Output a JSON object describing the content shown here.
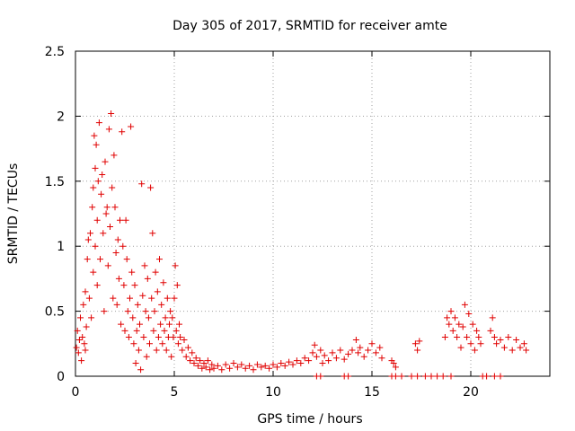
{
  "chart_data": {
    "type": "scatter",
    "title": "Day 305 of 2017, SRMTID for receiver amte",
    "xlabel": "GPS time / hours",
    "ylabel": "SRMTID / TECUs",
    "xlim": [
      0,
      24
    ],
    "ylim": [
      0,
      2.5
    ],
    "x_ticks": [
      0,
      5,
      10,
      15,
      20
    ],
    "x_tick_labels": [
      "0",
      "5",
      "10",
      "15",
      "20"
    ],
    "y_ticks": [
      0,
      0.5,
      1,
      1.5,
      2,
      2.5
    ],
    "y_tick_labels": [
      "0",
      "0.5",
      "1",
      "1.5",
      "2",
      "2.5"
    ],
    "grid": true,
    "marker": "+",
    "color": "#e00000",
    "series": [
      {
        "name": "SRMTID",
        "points": [
          [
            0.05,
            0.22
          ],
          [
            0.1,
            0.35
          ],
          [
            0.15,
            0.18
          ],
          [
            0.2,
            0.28
          ],
          [
            0.25,
            0.45
          ],
          [
            0.3,
            0.12
          ],
          [
            0.35,
            0.3
          ],
          [
            0.4,
            0.55
          ],
          [
            0.45,
            0.25
          ],
          [
            0.5,
            0.2
          ],
          [
            0.5,
            0.65
          ],
          [
            0.55,
            0.38
          ],
          [
            0.6,
            0.9
          ],
          [
            0.65,
            1.05
          ],
          [
            0.7,
            0.6
          ],
          [
            0.75,
            1.1
          ],
          [
            0.8,
            0.45
          ],
          [
            0.85,
            1.3
          ],
          [
            0.9,
            1.45
          ],
          [
            0.9,
            0.8
          ],
          [
            0.95,
            1.85
          ],
          [
            1.0,
            1.6
          ],
          [
            1.0,
            1.0
          ],
          [
            1.05,
            1.78
          ],
          [
            1.1,
            1.2
          ],
          [
            1.1,
            0.7
          ],
          [
            1.15,
            1.5
          ],
          [
            1.2,
            1.95
          ],
          [
            1.25,
            0.9
          ],
          [
            1.3,
            1.4
          ],
          [
            1.35,
            1.55
          ],
          [
            1.4,
            1.1
          ],
          [
            1.45,
            0.5
          ],
          [
            1.5,
            1.65
          ],
          [
            1.55,
            1.25
          ],
          [
            1.6,
            1.3
          ],
          [
            1.65,
            0.85
          ],
          [
            1.7,
            1.9
          ],
          [
            1.75,
            1.15
          ],
          [
            1.8,
            2.02
          ],
          [
            1.85,
            1.45
          ],
          [
            1.9,
            0.6
          ],
          [
            1.95,
            1.7
          ],
          [
            2.0,
            1.3
          ],
          [
            2.05,
            0.95
          ],
          [
            2.1,
            0.55
          ],
          [
            2.15,
            1.05
          ],
          [
            2.2,
            0.75
          ],
          [
            2.25,
            1.2
          ],
          [
            2.3,
            0.4
          ],
          [
            2.35,
            1.88
          ],
          [
            2.4,
            1.0
          ],
          [
            2.45,
            0.7
          ],
          [
            2.5,
            0.35
          ],
          [
            2.55,
            1.2
          ],
          [
            2.6,
            0.9
          ],
          [
            2.65,
            0.5
          ],
          [
            2.7,
            0.3
          ],
          [
            2.75,
            0.6
          ],
          [
            2.8,
            1.92
          ],
          [
            2.85,
            0.8
          ],
          [
            2.9,
            0.45
          ],
          [
            2.95,
            0.25
          ],
          [
            3.0,
            0.7
          ],
          [
            3.05,
            0.1
          ],
          [
            3.1,
            0.35
          ],
          [
            3.15,
            0.55
          ],
          [
            3.2,
            0.2
          ],
          [
            3.25,
            0.4
          ],
          [
            3.3,
            0.05
          ],
          [
            3.35,
            1.48
          ],
          [
            3.4,
            0.62
          ],
          [
            3.45,
            0.3
          ],
          [
            3.5,
            0.85
          ],
          [
            3.55,
            0.5
          ],
          [
            3.6,
            0.15
          ],
          [
            3.65,
            0.75
          ],
          [
            3.7,
            0.45
          ],
          [
            3.75,
            0.25
          ],
          [
            3.8,
            1.45
          ],
          [
            3.85,
            0.6
          ],
          [
            3.9,
            1.1
          ],
          [
            3.95,
            0.35
          ],
          [
            4.0,
            0.5
          ],
          [
            4.05,
            0.8
          ],
          [
            4.1,
            0.2
          ],
          [
            4.15,
            0.65
          ],
          [
            4.2,
            0.3
          ],
          [
            4.25,
            0.9
          ],
          [
            4.3,
            0.4
          ],
          [
            4.35,
            0.55
          ],
          [
            4.4,
            0.25
          ],
          [
            4.45,
            0.72
          ],
          [
            4.5,
            0.35
          ],
          [
            4.55,
            0.45
          ],
          [
            4.6,
            0.2
          ],
          [
            4.65,
            0.6
          ],
          [
            4.7,
            0.3
          ],
          [
            4.75,
            0.4
          ],
          [
            4.8,
            0.5
          ],
          [
            4.85,
            0.15
          ],
          [
            4.9,
            0.45
          ],
          [
            4.95,
            0.3
          ],
          [
            5.0,
            0.6
          ],
          [
            5.05,
            0.85
          ],
          [
            5.1,
            0.35
          ],
          [
            5.15,
            0.7
          ],
          [
            5.2,
            0.25
          ],
          [
            5.25,
            0.4
          ],
          [
            5.3,
            0.3
          ],
          [
            5.4,
            0.2
          ],
          [
            5.5,
            0.28
          ],
          [
            5.6,
            0.15
          ],
          [
            5.7,
            0.22
          ],
          [
            5.8,
            0.12
          ],
          [
            5.9,
            0.18
          ],
          [
            6.0,
            0.1
          ],
          [
            6.1,
            0.14
          ],
          [
            6.2,
            0.08
          ],
          [
            6.3,
            0.12
          ],
          [
            6.4,
            0.06
          ],
          [
            6.5,
            0.1
          ],
          [
            6.6,
            0.07
          ],
          [
            6.7,
            0.12
          ],
          [
            6.8,
            0.05
          ],
          [
            6.9,
            0.09
          ],
          [
            7.0,
            0.06
          ],
          [
            7.2,
            0.08
          ],
          [
            7.4,
            0.05
          ],
          [
            7.6,
            0.09
          ],
          [
            7.8,
            0.06
          ],
          [
            8.0,
            0.1
          ],
          [
            8.2,
            0.07
          ],
          [
            8.4,
            0.09
          ],
          [
            8.6,
            0.06
          ],
          [
            8.8,
            0.08
          ],
          [
            9.0,
            0.05
          ],
          [
            9.2,
            0.09
          ],
          [
            9.4,
            0.07
          ],
          [
            9.6,
            0.08
          ],
          [
            9.8,
            0.06
          ],
          [
            10.0,
            0.09
          ],
          [
            10.2,
            0.07
          ],
          [
            10.4,
            0.1
          ],
          [
            10.6,
            0.08
          ],
          [
            10.8,
            0.11
          ],
          [
            11.0,
            0.09
          ],
          [
            11.2,
            0.12
          ],
          [
            11.4,
            0.1
          ],
          [
            11.6,
            0.14
          ],
          [
            11.8,
            0.12
          ],
          [
            12.0,
            0.18
          ],
          [
            12.1,
            0.24
          ],
          [
            12.2,
            0.15
          ],
          [
            12.4,
            0.2
          ],
          [
            12.5,
            0.1
          ],
          [
            12.6,
            0.16
          ],
          [
            12.8,
            0.12
          ],
          [
            13.0,
            0.18
          ],
          [
            13.2,
            0.14
          ],
          [
            13.4,
            0.2
          ],
          [
            13.6,
            0.13
          ],
          [
            13.8,
            0.17
          ],
          [
            14.0,
            0.2
          ],
          [
            14.2,
            0.28
          ],
          [
            14.3,
            0.18
          ],
          [
            14.4,
            0.22
          ],
          [
            14.6,
            0.15
          ],
          [
            14.8,
            0.2
          ],
          [
            15.0,
            0.25
          ],
          [
            15.2,
            0.18
          ],
          [
            15.4,
            0.22
          ],
          [
            15.5,
            0.14
          ],
          [
            16.0,
            0.12
          ],
          [
            16.1,
            0.1
          ],
          [
            16.2,
            0.07
          ],
          [
            17.2,
            0.25
          ],
          [
            17.3,
            0.2
          ],
          [
            17.4,
            0.27
          ],
          [
            18.7,
            0.3
          ],
          [
            18.8,
            0.45
          ],
          [
            18.9,
            0.4
          ],
          [
            19.0,
            0.5
          ],
          [
            19.1,
            0.35
          ],
          [
            19.2,
            0.45
          ],
          [
            19.3,
            0.3
          ],
          [
            19.4,
            0.4
          ],
          [
            19.5,
            0.22
          ],
          [
            19.6,
            0.38
          ],
          [
            19.7,
            0.55
          ],
          [
            19.8,
            0.3
          ],
          [
            19.9,
            0.48
          ],
          [
            20.0,
            0.25
          ],
          [
            20.1,
            0.4
          ],
          [
            20.2,
            0.2
          ],
          [
            20.3,
            0.35
          ],
          [
            20.4,
            0.3
          ],
          [
            20.5,
            0.25
          ],
          [
            21.0,
            0.35
          ],
          [
            21.1,
            0.45
          ],
          [
            21.2,
            0.3
          ],
          [
            21.3,
            0.25
          ],
          [
            21.5,
            0.28
          ],
          [
            21.7,
            0.22
          ],
          [
            21.9,
            0.3
          ],
          [
            22.1,
            0.2
          ],
          [
            22.3,
            0.28
          ],
          [
            22.5,
            0.22
          ],
          [
            22.7,
            0.25
          ],
          [
            22.8,
            0.2
          ],
          [
            12.2,
            0.0
          ],
          [
            12.4,
            0.0
          ],
          [
            13.6,
            0.0
          ],
          [
            13.8,
            0.0
          ],
          [
            16.0,
            0.0
          ],
          [
            16.2,
            0.0
          ],
          [
            16.5,
            0.0
          ],
          [
            17.0,
            0.0
          ],
          [
            17.3,
            0.0
          ],
          [
            17.7,
            0.0
          ],
          [
            18.0,
            0.0
          ],
          [
            18.3,
            0.0
          ],
          [
            18.6,
            0.0
          ],
          [
            19.0,
            0.0
          ],
          [
            20.6,
            0.0
          ],
          [
            20.8,
            0.0
          ],
          [
            21.2,
            0.0
          ],
          [
            21.5,
            0.0
          ]
        ]
      }
    ]
  }
}
